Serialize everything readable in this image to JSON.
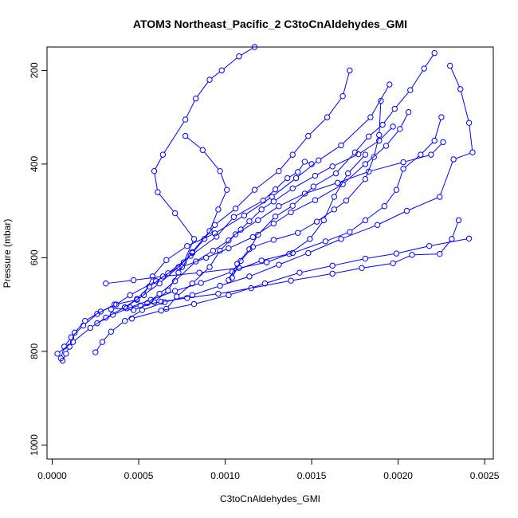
{
  "chart_data": {
    "type": "line",
    "title": "ATOM3 Northeast_Pacific_2 C3toCnAldehydes_GMI",
    "xlabel": "C3toCnAldehydes_GMI",
    "ylabel": "Pressure (mbar)",
    "xlim": [
      -3e-05,
      0.00255
    ],
    "ylim": [
      1030,
      150
    ],
    "y_reversed": true,
    "grid": false,
    "legend": "none",
    "marker": "open-circle",
    "series_color": "#0000ff",
    "xticks": [
      0.0,
      0.0005,
      0.001,
      0.0015,
      0.002,
      0.0025
    ],
    "xtick_labels": [
      "0.0000",
      "0.0005",
      "0.0010",
      "0.0015",
      "0.0020",
      "0.0025"
    ],
    "yticks": [
      200,
      400,
      600,
      800,
      1000
    ],
    "ytick_labels": [
      "200",
      "400",
      "600",
      "800",
      "1000"
    ],
    "series": [
      {
        "x": [
          6e-05,
          8e-05,
          0.0001,
          0.00013,
          0.00019,
          0.00028,
          0.00037,
          0.00045,
          0.0006,
          0.00073,
          0.00081,
          0.00088,
          0.00094,
          0.00106,
          0.00117,
          0.00131,
          0.00139,
          0.00148,
          0.00159,
          0.00168,
          0.00172
        ],
        "y": [
          820,
          805,
          790,
          760,
          735,
          715,
          700,
          680,
          650,
          620,
          590,
          560,
          530,
          495,
          455,
          415,
          380,
          340,
          300,
          255,
          200
        ]
      },
      {
        "x": [
          5e-05,
          7e-05,
          0.00011,
          0.00018,
          0.00026,
          0.00036,
          0.00049,
          0.00062,
          0.00076,
          0.00082,
          0.00071,
          0.00061,
          0.00059,
          0.00064,
          0.00077,
          0.00083,
          0.00091,
          0.00098,
          0.00108,
          0.00117
        ],
        "y": [
          815,
          790,
          770,
          745,
          720,
          700,
          690,
          655,
          610,
          560,
          505,
          460,
          415,
          380,
          305,
          260,
          220,
          200,
          170,
          150
        ]
      },
      {
        "x": [
          3e-05,
          0.00012,
          0.00022,
          0.00031,
          0.00042,
          0.00053,
          0.00058,
          0.00066,
          0.00078,
          0.00094,
          0.00111,
          0.00127,
          0.00141,
          0.00154,
          0.00167,
          0.00184,
          0.00195
        ],
        "y": [
          805,
          780,
          750,
          728,
          706,
          680,
          640,
          605,
          575,
          548,
          510,
          470,
          430,
          392,
          360,
          300,
          230
        ]
      },
      {
        "x": [
          0.00025,
          0.00029,
          0.00034,
          0.00042,
          0.00052,
          0.00065,
          0.00081,
          0.00097,
          0.00114,
          0.00131,
          0.00148,
          0.00167,
          0.00188,
          0.00205,
          0.00224,
          0.00232,
          0.00243,
          0.00241,
          0.00236,
          0.0023
        ],
        "y": [
          802,
          780,
          758,
          735,
          712,
          695,
          680,
          660,
          640,
          615,
          590,
          560,
          530,
          500,
          470,
          390,
          375,
          312,
          240,
          190
        ]
      },
      {
        "x": [
          0.00026,
          0.00035,
          0.00045,
          0.00057,
          0.00071,
          0.00086,
          0.00104,
          0.00121,
          0.00139,
          0.00158,
          0.00172,
          0.00181,
          0.00192,
          0.00199,
          0.00203,
          0.00213,
          0.00221,
          0.00225
        ],
        "y": [
          740,
          722,
          706,
          690,
          671,
          654,
          630,
          606,
          590,
          565,
          545,
          520,
          490,
          455,
          410,
          380,
          350,
          300
        ]
      },
      {
        "x": [
          0.00034,
          0.00043,
          0.00051,
          0.00063,
          0.00078,
          0.00096,
          0.00115,
          0.00138,
          0.00162,
          0.00179,
          0.00197,
          0.00208,
          0.00224,
          0.00231,
          0.00235
        ],
        "y": [
          710,
          708,
          702,
          694,
          686,
          677,
          665,
          649,
          634,
          622,
          612,
          594,
          592,
          560,
          520
        ]
      },
      {
        "x": [
          0.00046,
          0.00063,
          0.00082,
          0.00102,
          0.00123,
          0.00143,
          0.00162,
          0.00181,
          0.00199,
          0.00218,
          0.00241
        ],
        "y": [
          730,
          713,
          699,
          680,
          655,
          632,
          617,
          602,
          591,
          575,
          559
        ]
      },
      {
        "x": [
          0.00031,
          0.00047,
          0.00064,
          0.00085,
          0.00108,
          0.00124,
          0.00137,
          0.00149,
          0.00157,
          0.00163,
          0.00171,
          0.00181
        ],
        "y": [
          655,
          648,
          640,
          632,
          622,
          610,
          592,
          560,
          520,
          470,
          420,
          380
        ]
      },
      {
        "x": [
          0.00047,
          0.00059,
          0.00067,
          0.00073,
          0.00081,
          0.00091,
          0.00096,
          0.00101,
          0.00097,
          0.00087,
          0.00077
        ],
        "y": [
          712,
          695,
          670,
          632,
          588,
          543,
          497,
          455,
          415,
          370,
          340
        ]
      },
      {
        "x": [
          0.00042,
          0.00049,
          0.00056,
          0.00067,
          0.0008,
          0.00095,
          0.00105,
          0.00122,
          0.00129,
          0.00136,
          0.00142,
          0.00146,
          0.0015
        ],
        "y": [
          706,
          688,
          662,
          633,
          596,
          555,
          513,
          478,
          454,
          430,
          417,
          395,
          400
        ]
      },
      {
        "x": [
          0.00055,
          0.00062,
          0.00071,
          0.00083,
          0.00093,
          0.00102,
          0.00109,
          0.00114,
          0.00121,
          0.00128,
          0.00139,
          0.00152,
          0.00162,
          0.00177,
          0.00189,
          0.00197
        ],
        "y": [
          697,
          677,
          650,
          608,
          585,
          563,
          540,
          522,
          497,
          480,
          452,
          425,
          405,
          379,
          350,
          320
        ]
      },
      {
        "x": [
          0.00066,
          0.00072,
          0.00081,
          0.00091,
          0.00097,
          0.00106,
          0.00119,
          0.00131,
          0.00146,
          0.00165,
          0.00183,
          0.00203,
          0.00219,
          0.00226
        ],
        "y": [
          709,
          683,
          655,
          620,
          585,
          550,
          520,
          490,
          463,
          440,
          416,
          396,
          380,
          353
        ]
      },
      {
        "x": [
          0.00102,
          0.00107,
          0.00114,
          0.00119,
          0.00129,
          0.00139,
          0.00151,
          0.00164,
          0.00175,
          0.00183,
          0.00191,
          0.00198,
          0.00207,
          0.00215,
          0.00221
        ],
        "y": [
          648,
          613,
          582,
          551,
          512,
          489,
          448,
          420,
          375,
          341,
          316,
          282,
          242,
          196,
          163
        ]
      },
      {
        "x": [
          0.00104,
          0.00109,
          0.00116,
          0.00128,
          0.00142,
          0.00153,
          0.00163,
          0.0017,
          0.00181,
          0.00186,
          0.00189,
          0.0019
        ],
        "y": [
          643,
          607,
          577,
          562,
          547,
          523,
          497,
          478,
          432,
          385,
          338,
          265
        ]
      },
      {
        "x": [
          0.00075,
          0.00089,
          0.00102,
          0.00116,
          0.00128,
          0.00138,
          0.00152,
          0.00168,
          0.00181,
          0.00193,
          0.00201,
          0.00206
        ],
        "y": [
          620,
          600,
          580,
          556,
          527,
          503,
          477,
          443,
          400,
          361,
          325,
          289
        ]
      }
    ]
  }
}
